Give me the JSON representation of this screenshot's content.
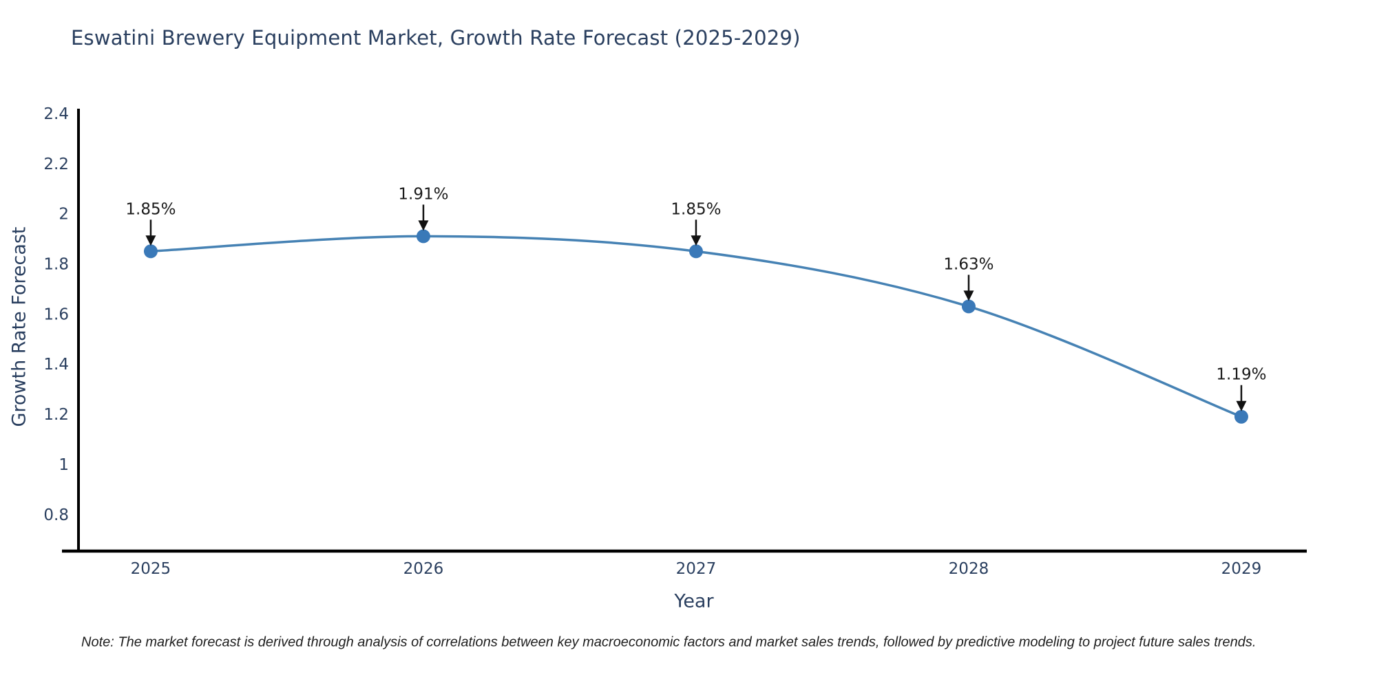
{
  "chart_data": {
    "type": "line",
    "title": "Eswatini Brewery Equipment Market, Growth Rate Forecast (2025-2029)",
    "xlabel": "Year",
    "ylabel": "Growth Rate Forecast",
    "x": [
      2025,
      2026,
      2027,
      2028,
      2029
    ],
    "series": [
      {
        "name": "Growth Rate Forecast",
        "values": [
          1.85,
          1.91,
          1.85,
          1.63,
          1.19
        ]
      }
    ],
    "point_labels": [
      "1.85%",
      "1.91%",
      "1.85%",
      "1.63%",
      "1.19%"
    ],
    "x_tick_labels": [
      "2025",
      "2026",
      "2027",
      "2028",
      "2029"
    ],
    "y_tick_values": [
      2.4,
      2.2,
      2,
      1.8,
      1.6,
      1.4,
      1.2,
      1,
      0.8
    ],
    "y_tick_labels": [
      "2.4",
      "2.2",
      "2",
      "1.8",
      "1.6",
      "1.4",
      "1.2",
      "1",
      "0.8"
    ],
    "xlim": [
      2024.735,
      2029.24
    ],
    "ylim": [
      0.654,
      2.419
    ],
    "grid": false,
    "legend": false,
    "line_shape": "spline",
    "colors": {
      "line": "#4682b4",
      "marker": "#3a79b8",
      "axis": "#000000",
      "tick_text": "#2a3f5f",
      "annotation_text": "#1a1a1a",
      "annotation_arrow": "#111111"
    }
  },
  "footer": {
    "note": "Note: The market forecast is derived through analysis of correlations between key macroeconomic factors and market sales trends, followed by predictive modeling to project future sales trends."
  }
}
